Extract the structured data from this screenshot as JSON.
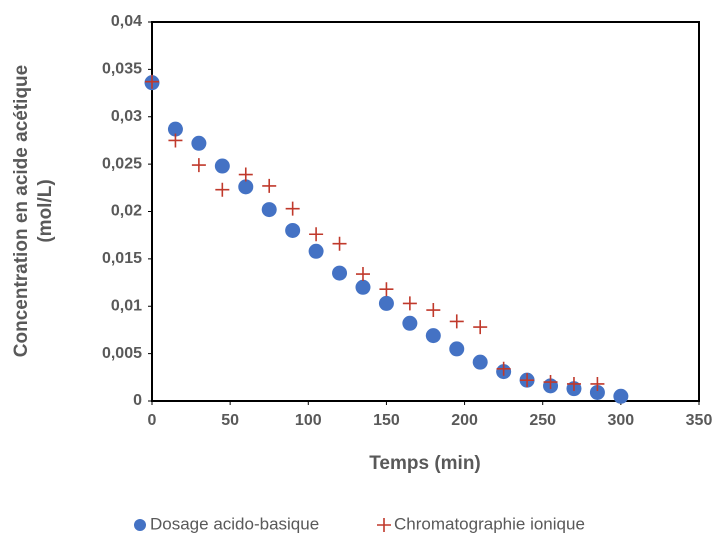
{
  "chart_data": {
    "type": "scatter",
    "x_label": "Temps (min)",
    "y_label": [
      "Concentration en acide acétique",
      "(mol/L)"
    ],
    "xlim": [
      0,
      350
    ],
    "xticks": [
      0,
      50,
      100,
      150,
      200,
      250,
      300,
      350
    ],
    "ylim": [
      0,
      0.04
    ],
    "yticks": [
      0,
      {
        "value": 0.005,
        "label": "0,005"
      },
      {
        "value": 0.01,
        "label": "0,01"
      },
      {
        "value": 0.015,
        "label": "0,015"
      },
      {
        "value": 0.02,
        "label": "0,02"
      },
      {
        "value": 0.025,
        "label": "0,025"
      },
      {
        "value": 0.03,
        "label": "0,03"
      },
      {
        "value": 0.035,
        "label": "0,035"
      },
      {
        "value": 0.04,
        "label": "0,04"
      }
    ],
    "legend_position": "bottom",
    "series": [
      {
        "name": "Dosage acido-basique",
        "color": "#4472c4",
        "marker": "circle",
        "x": [
          0,
          15,
          30,
          45,
          60,
          75,
          90,
          105,
          120,
          135,
          150,
          165,
          180,
          195,
          210,
          225,
          240,
          255,
          270,
          285,
          300
        ],
        "values": [
          0.0336,
          0.0287,
          0.0272,
          0.0248,
          0.0226,
          0.0202,
          0.018,
          0.0158,
          0.0135,
          0.012,
          0.0103,
          0.0082,
          0.0069,
          0.0055,
          0.0041,
          0.0031,
          0.0022,
          0.0016,
          0.0013,
          0.0009,
          0.0005
        ]
      },
      {
        "name": "Chromatographie ionique",
        "color": "#c0392b",
        "marker": "plus",
        "x": [
          0,
          15,
          30,
          45,
          60,
          75,
          90,
          105,
          120,
          135,
          150,
          165,
          180,
          195,
          210,
          225,
          240,
          255,
          270,
          285
        ],
        "values": [
          0.0337,
          0.0275,
          0.0249,
          0.0223,
          0.0239,
          0.0227,
          0.0203,
          0.0176,
          0.0166,
          0.0134,
          0.0118,
          0.0103,
          0.0096,
          0.0084,
          0.0078,
          0.0034,
          0.0022,
          0.002,
          0.0018,
          0.0018
        ]
      }
    ]
  }
}
